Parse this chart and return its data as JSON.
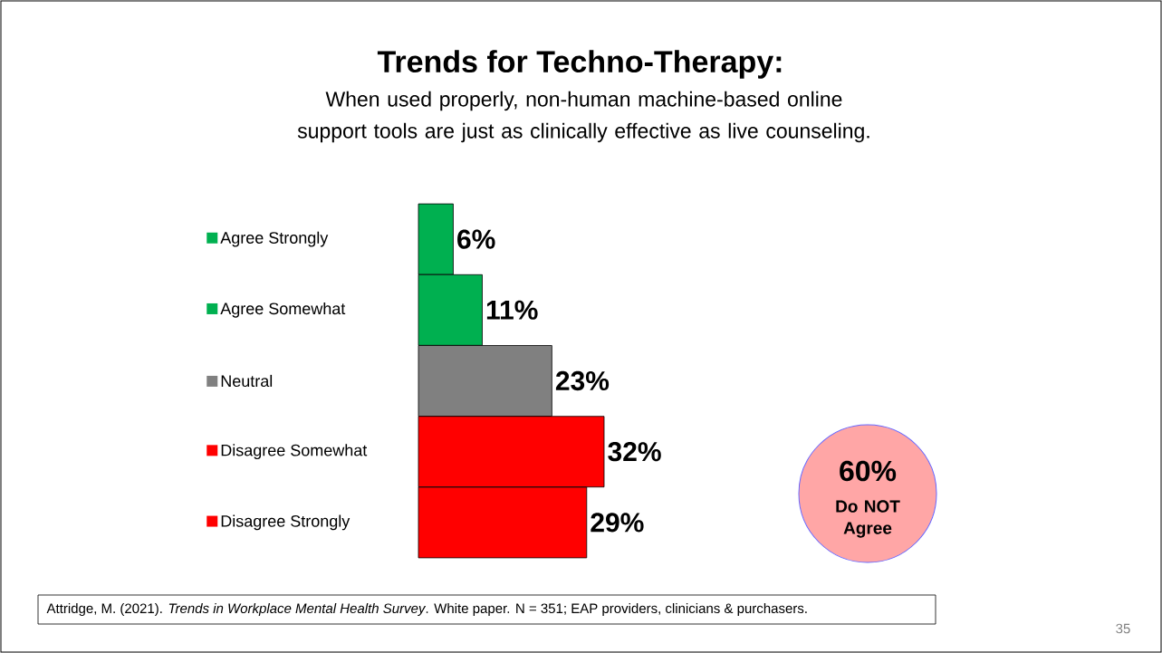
{
  "chart_data": {
    "type": "bar",
    "orientation": "horizontal",
    "title": "Trends for Techno-Therapy:",
    "subtitle": "When used properly, non-human machine-based online support tools are just as clinically effective as live counseling.",
    "categories": [
      "Agree Strongly",
      "Agree Somewhat",
      "Neutral",
      "Disagree Somewhat",
      "Disagree Strongly"
    ],
    "values": [
      6,
      11,
      23,
      32,
      29
    ],
    "value_labels": [
      "6%",
      "11%",
      "23%",
      "32%",
      "29%"
    ],
    "colors": [
      "#00b050",
      "#00b050",
      "#808080",
      "#ff0000",
      "#ff0000"
    ],
    "tick_labels": "y",
    "annotations": [
      "60%",
      "Do NOT Agree",
      "Attridge, M.  (2021).  *Trends in Workplace Mental Health Survey*.  White paper. N = 351; EAP providers, clinicians & purchasers.",
      "35"
    ]
  }
}
